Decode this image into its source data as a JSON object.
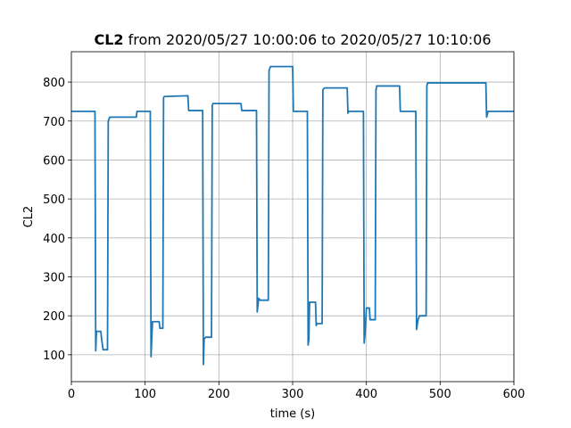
{
  "chart_data": {
    "type": "line",
    "title_bold": "CL2",
    "title": "from 2020/05/27 10:00:06 to 2020/05/27 10:10:06",
    "xlabel": "time (s)",
    "ylabel": "CL2",
    "x": [
      0,
      32,
      33,
      34,
      40,
      41,
      43,
      49,
      50,
      52,
      88,
      89,
      107,
      108,
      110,
      119,
      120,
      124,
      125,
      126,
      158,
      159,
      178,
      179,
      180,
      182,
      183,
      190,
      191,
      192,
      230,
      231,
      251,
      252,
      254,
      256,
      267,
      268,
      270,
      300,
      301,
      320,
      321,
      322,
      323,
      331,
      332,
      333,
      340,
      341,
      343,
      374,
      375,
      376,
      396,
      397,
      398,
      400,
      404,
      405,
      412,
      413,
      414,
      445,
      446,
      447,
      467,
      468,
      470,
      472,
      481,
      482,
      483,
      562,
      563,
      565,
      600
    ],
    "values": [
      725,
      725,
      110,
      160,
      160,
      140,
      113,
      113,
      700,
      710,
      710,
      725,
      725,
      95,
      185,
      185,
      168,
      168,
      760,
      763,
      765,
      727,
      727,
      75,
      140,
      145,
      145,
      145,
      740,
      745,
      745,
      727,
      727,
      210,
      245,
      240,
      240,
      830,
      840,
      840,
      725,
      725,
      125,
      140,
      235,
      235,
      175,
      180,
      180,
      780,
      785,
      785,
      720,
      725,
      725,
      130,
      150,
      220,
      220,
      190,
      190,
      780,
      790,
      790,
      725,
      725,
      725,
      165,
      190,
      200,
      200,
      790,
      798,
      798,
      710,
      725,
      725
    ],
    "color": "#1f77b4",
    "xlim": [
      0,
      600
    ],
    "ylim": [
      31,
      878
    ],
    "xticks": [
      0,
      100,
      200,
      300,
      400,
      500,
      600
    ],
    "yticks": [
      100,
      200,
      300,
      400,
      500,
      600,
      700,
      800
    ],
    "grid": true
  }
}
